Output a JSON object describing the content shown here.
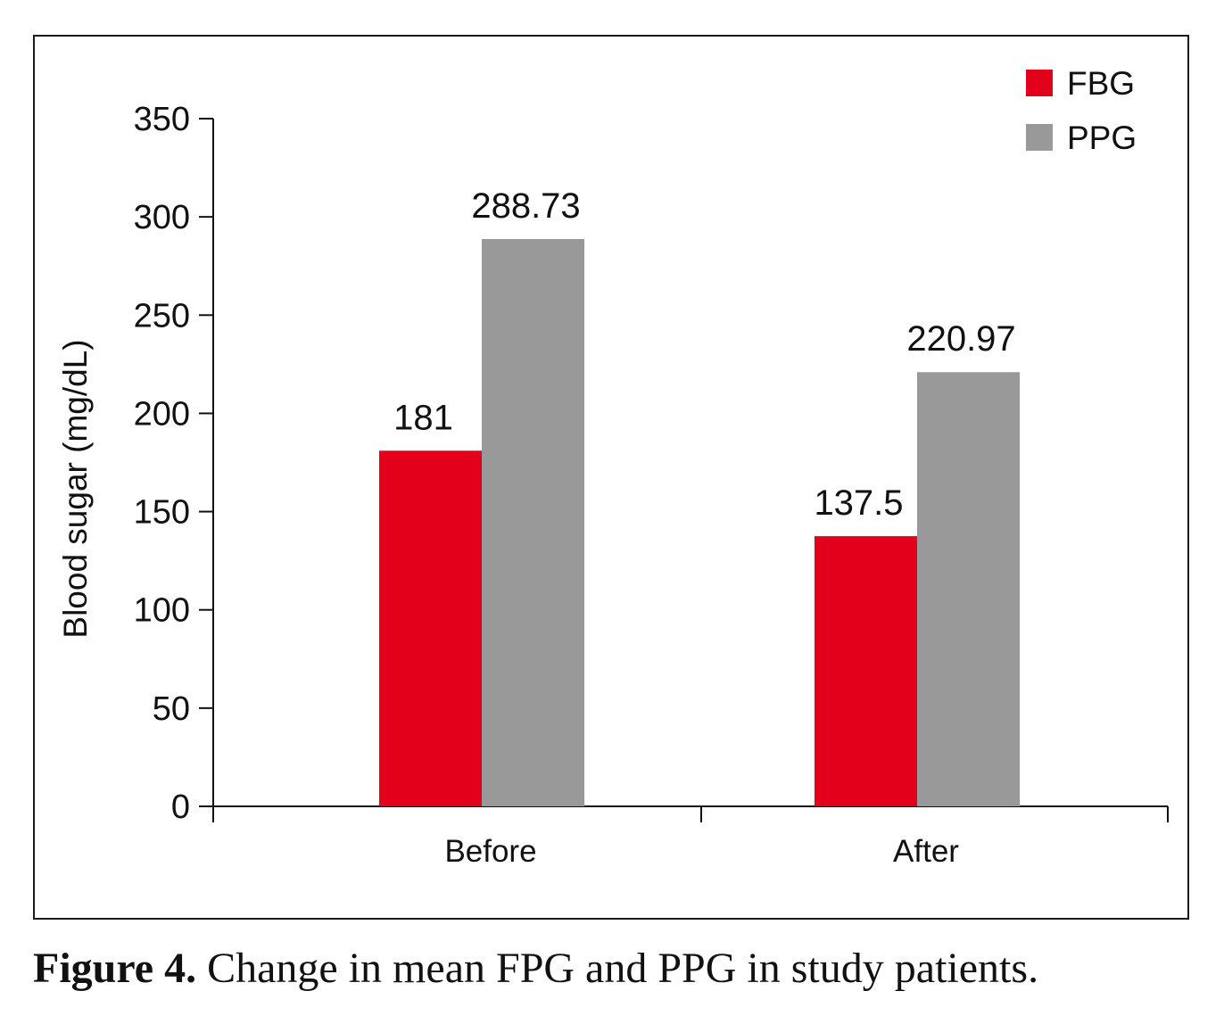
{
  "caption": {
    "label": "Figure 4.",
    "text": " Change in mean FPG and PPG in study patients."
  },
  "colors": {
    "FBG": "#e2001a",
    "PPG": "#999999",
    "axis": "#111111"
  },
  "chart_data": {
    "type": "bar",
    "title": "",
    "xlabel": "",
    "ylabel": "Blood sugar (mg/dL)",
    "categories": [
      "Before",
      "After"
    ],
    "series": [
      {
        "name": "FBG",
        "values": [
          181,
          137.5
        ],
        "labels": [
          "181",
          "137.5"
        ]
      },
      {
        "name": "PPG",
        "values": [
          288.73,
          220.97
        ],
        "labels": [
          "288.73",
          "220.97"
        ]
      }
    ],
    "ylim": [
      0,
      350
    ],
    "yticks": [
      0,
      50,
      100,
      150,
      200,
      250,
      300,
      350
    ],
    "grid": false,
    "legend": "top-right"
  }
}
